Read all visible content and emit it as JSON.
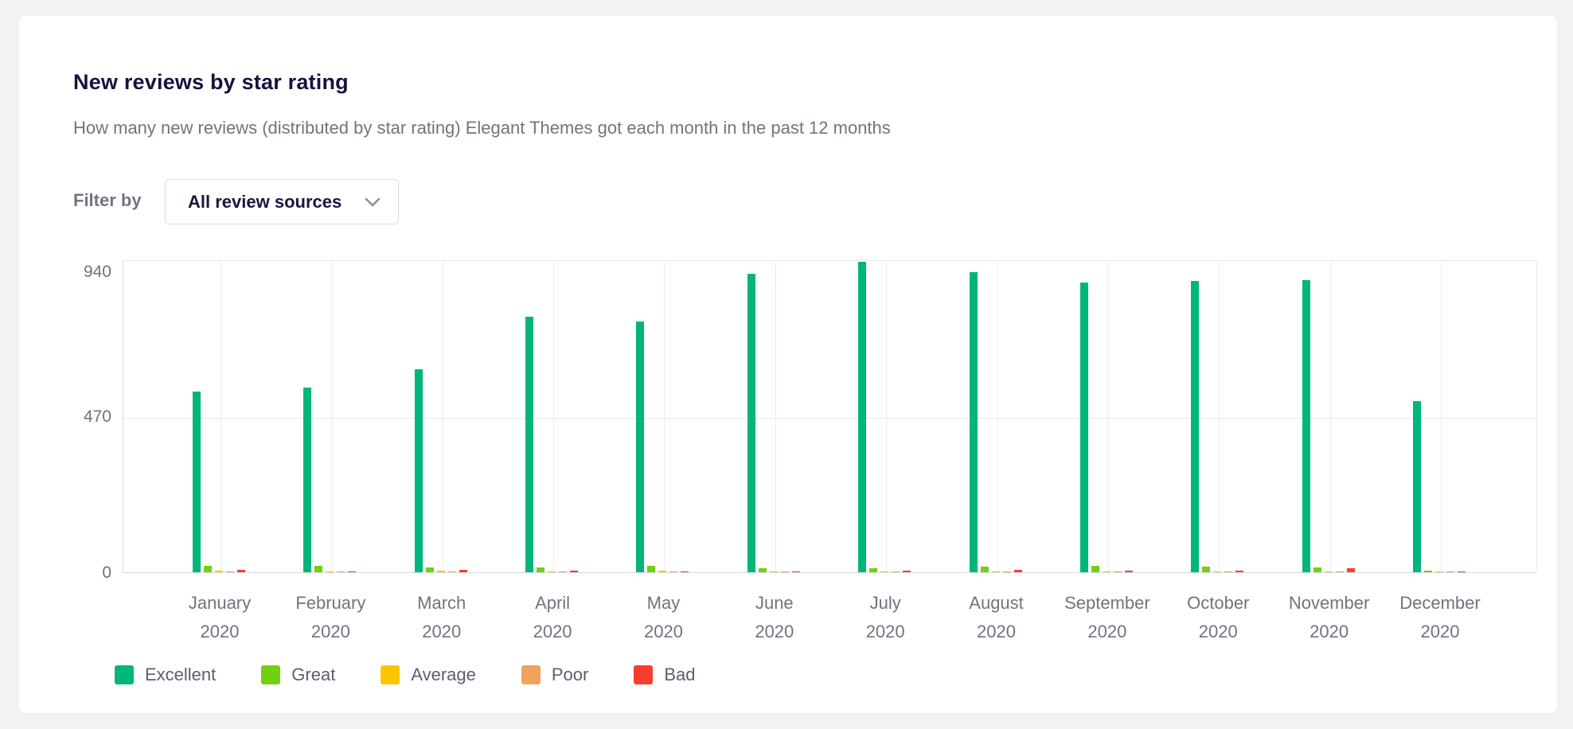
{
  "card": {
    "title": "New reviews by star rating",
    "subtitle": "How many new reviews (distributed by star rating) Elegant Themes got each month in the past 12 months"
  },
  "filter": {
    "label": "Filter by",
    "selected": "All review sources",
    "chevron_icon": "chevron-down"
  },
  "chart_data": {
    "type": "bar",
    "title": "New reviews by star rating",
    "categories": [
      "January 2020",
      "February 2020",
      "March 2020",
      "April 2020",
      "May 2020",
      "June 2020",
      "July 2020",
      "August 2020",
      "September 2020",
      "October 2020",
      "November 2020",
      "December 2020"
    ],
    "series": [
      {
        "name": "Excellent",
        "color": "#00b67a",
        "values": [
          542,
          554,
          610,
          768,
          753,
          898,
          932,
          901,
          871,
          875,
          877,
          515
        ]
      },
      {
        "name": "Great",
        "color": "#73cf11",
        "values": [
          20,
          20,
          15,
          15,
          18,
          12,
          12,
          16,
          18,
          16,
          14,
          6
        ]
      },
      {
        "name": "Average",
        "color": "#fdc500",
        "values": [
          6,
          2,
          5,
          2,
          4,
          1,
          1,
          1,
          2,
          2,
          1,
          1
        ]
      },
      {
        "name": "Poor",
        "color": "#efa35c",
        "values": [
          2,
          2,
          1,
          1,
          2,
          2,
          2,
          1,
          2,
          1,
          1,
          2
        ]
      },
      {
        "name": "Bad",
        "color": "#f73e2e",
        "values": [
          7,
          1,
          8,
          6,
          2,
          3,
          6,
          7,
          6,
          6,
          13,
          2
        ]
      }
    ],
    "ylim": [
      0,
      940
    ],
    "yticks": [
      0,
      470,
      940
    ],
    "grid": true,
    "legend_position": "bottom"
  }
}
